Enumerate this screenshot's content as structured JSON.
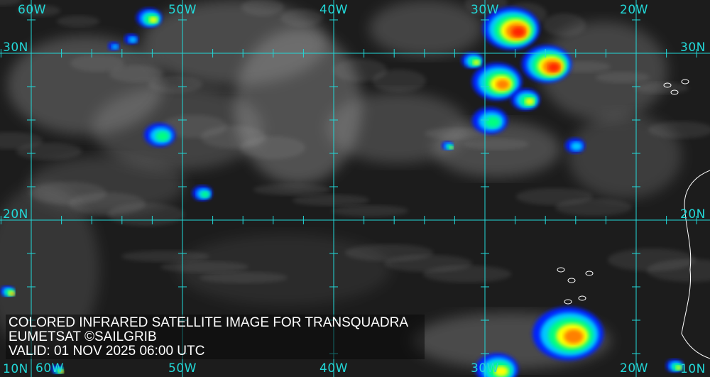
{
  "map": {
    "longitude_labels_top": [
      "60W",
      "50W",
      "40W",
      "30W",
      "20W"
    ],
    "longitude_labels_bottom": [
      "60W",
      "50W",
      "40W",
      "30W",
      "20W"
    ],
    "latitude_labels_left": [
      "30N",
      "20N",
      "10N"
    ],
    "latitude_labels_right": [
      "30N",
      "20N",
      "10N"
    ],
    "grid_color": "#22d8d8",
    "background_color": "#1c1c1c",
    "colorscale": [
      "#0022ff",
      "#00c8ff",
      "#00ff80",
      "#ffff00",
      "#ff8000",
      "#ff2000"
    ]
  },
  "caption": {
    "title": "COLORED INFRARED SATELLITE IMAGE FOR TRANSQUADRA",
    "credit": "EUMETSAT ©SAILGRIB",
    "valid": "VALID:  01 NOV 2025 06:00 UTC"
  }
}
